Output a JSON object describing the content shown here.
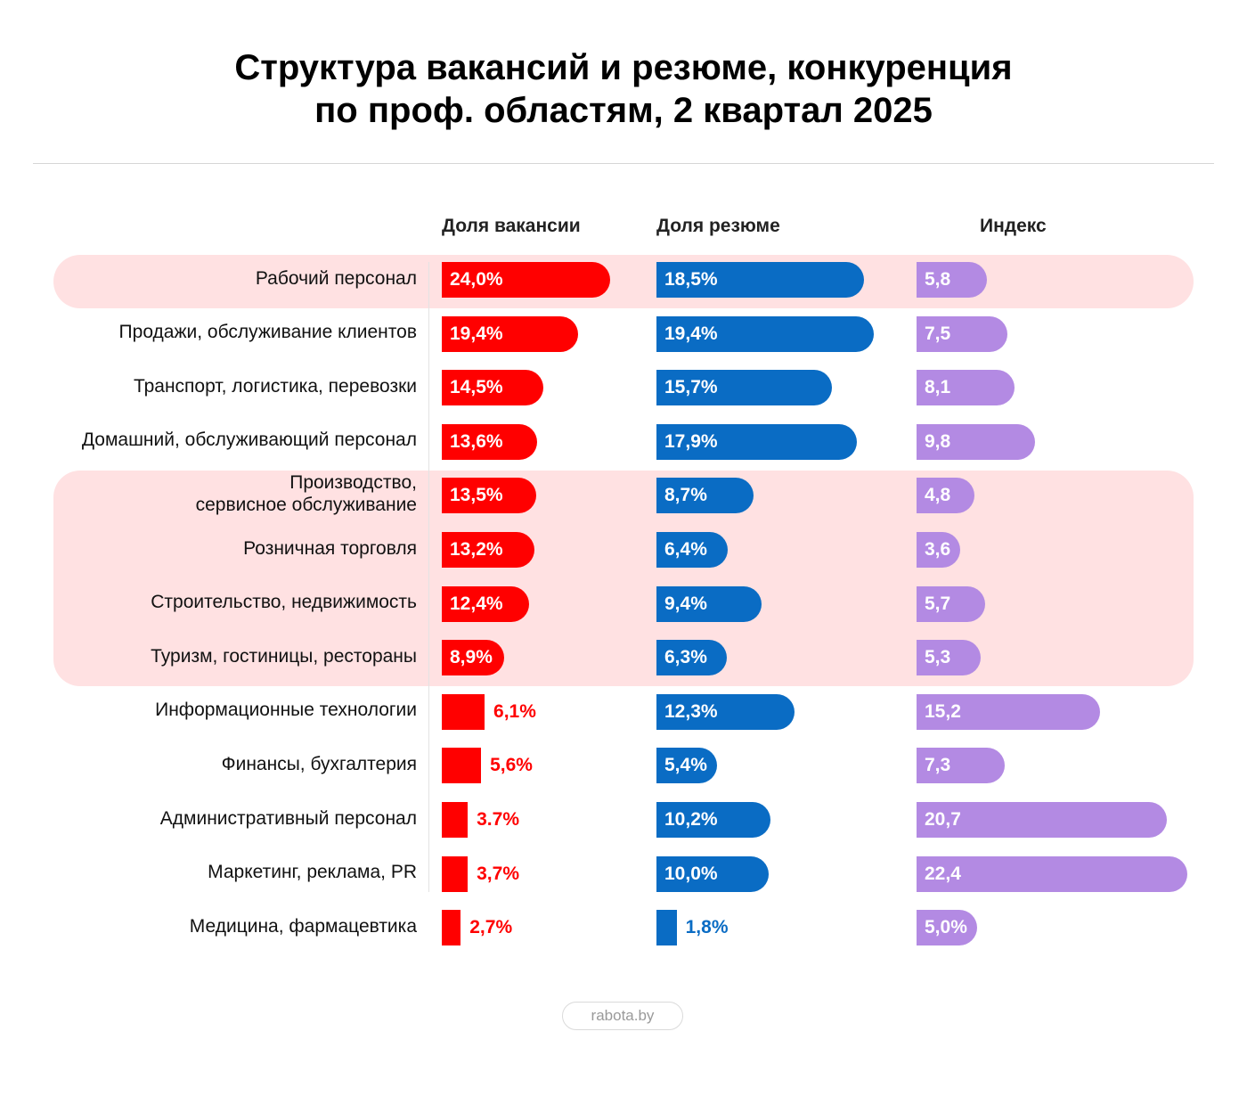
{
  "colors": {
    "vacancy": "#ff0000",
    "resume": "#0a6cc4",
    "index": "#b38ae3",
    "band": "#ffe1e2"
  },
  "chart_data": {
    "type": "bar",
    "title_lines": [
      "Структура вакансий и резюме, конкуренция",
      "по проф. областям,  2 квартал  2025"
    ],
    "column_headers": {
      "vacancy": "Доля вакансии",
      "resume": "Доля резюме",
      "index": "Индекс"
    },
    "highlighted_groups": [
      [
        0
      ],
      [
        4,
        5,
        6,
        7
      ]
    ],
    "categories": [
      [
        "Рабочий персонал"
      ],
      [
        "Продажи, обслуживание клиентов"
      ],
      [
        "Транспорт, логистика, перевозки"
      ],
      [
        "Домашний, обслуживающий персонал"
      ],
      [
        "Производство,",
        "сервисное обслуживание"
      ],
      [
        "Розничная торговля"
      ],
      [
        "Строительство, недвижимость"
      ],
      [
        "Туризм, гостиницы, рестораны"
      ],
      [
        "Информационные технологии"
      ],
      [
        "Финансы, бухгалтерия"
      ],
      [
        "Административный персонал"
      ],
      [
        "Маркетинг, реклама, PR"
      ],
      [
        "Медицина, фармацевтика"
      ]
    ],
    "series": [
      {
        "key": "vacancy",
        "name": "Доля вакансии",
        "unit": "%",
        "values": [
          24.0,
          19.4,
          14.5,
          13.6,
          13.5,
          13.2,
          12.4,
          8.9,
          6.1,
          5.6,
          3.7,
          3.7,
          2.7
        ],
        "labels": [
          "24,0%",
          "19,4%",
          "14,5%",
          "13,6%",
          "13,5%",
          "13,2%",
          "12,4%",
          "8,9%",
          "6,1%",
          "5,6%",
          "3.7%",
          "3,7%",
          "2,7%"
        ]
      },
      {
        "key": "resume",
        "name": "Доля резюме",
        "unit": "%",
        "values": [
          18.5,
          19.4,
          15.7,
          17.9,
          8.7,
          6.4,
          9.4,
          6.3,
          12.3,
          5.4,
          10.2,
          10.0,
          1.8
        ],
        "labels": [
          "18,5%",
          "19,4%",
          "15,7%",
          "17,9%",
          "8,7%",
          "6,4%",
          "9,4%",
          "6,3%",
          "12,3%",
          "5,4%",
          "10,2%",
          "10,0%",
          "1,8%"
        ]
      },
      {
        "key": "index",
        "name": "Индекс",
        "unit": "",
        "values": [
          5.8,
          7.5,
          8.1,
          9.8,
          4.8,
          3.6,
          5.7,
          5.3,
          15.2,
          7.3,
          20.7,
          22.4,
          5.0
        ],
        "labels": [
          "5,8",
          "7,5",
          "8,1",
          "9,8",
          "4,8",
          "3,6",
          "5,7",
          "5,3",
          "15,2",
          "7,3",
          "20,7",
          "22,4",
          "5,0%"
        ]
      }
    ]
  },
  "footer": {
    "brand": "rabota.by"
  }
}
